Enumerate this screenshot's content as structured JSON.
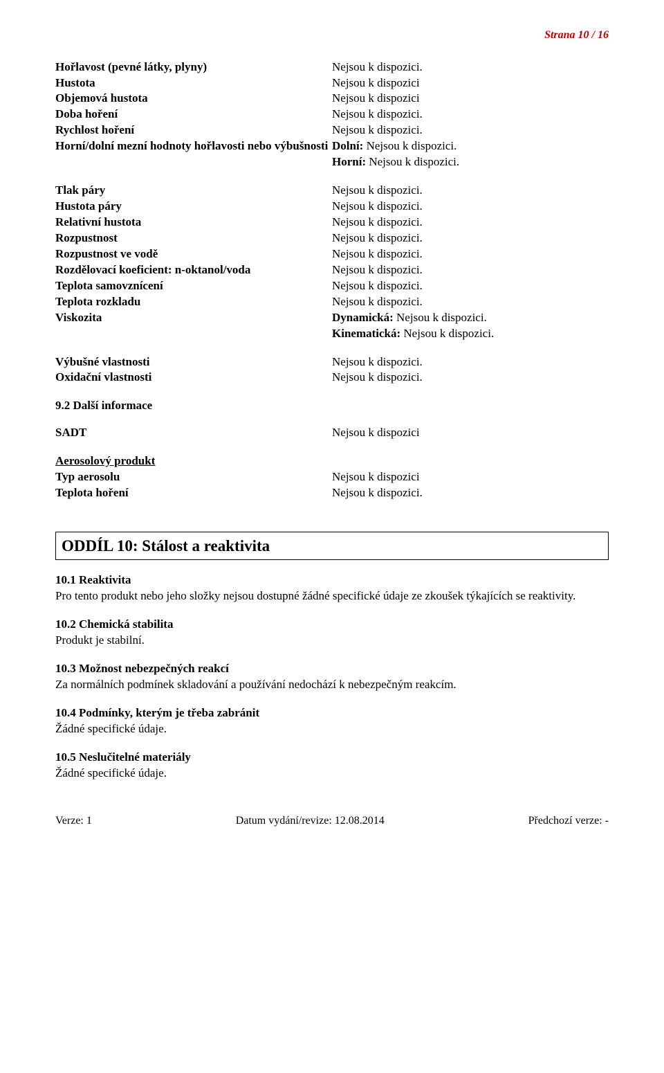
{
  "pageNumber": "Strana 10 / 16",
  "group1": [
    {
      "label": "Hořlavost (pevné látky, plyny)",
      "value": "Nejsou k dispozici."
    },
    {
      "label": "Hustota",
      "value": "Nejsou k dispozici"
    },
    {
      "label": "Objemová hustota",
      "value": "Nejsou k dispozici"
    },
    {
      "label": "Doba hoření",
      "value": "Nejsou k dispozici."
    },
    {
      "label": "Rychlost hoření",
      "value": "Nejsou k dispozici."
    },
    {
      "label": "Horní/dolní mezní hodnoty hořlavosti nebo výbušnosti",
      "value1_prefix": "Dolní: ",
      "value1_rest": "Nejsou k dispozici.",
      "value2_prefix": "Horní: ",
      "value2_rest": "Nejsou k dispozici."
    }
  ],
  "group2": [
    {
      "label": "Tlak páry",
      "value": "Nejsou k dispozici."
    },
    {
      "label": "Hustota páry",
      "value": "Nejsou k dispozici."
    },
    {
      "label": "Relativní hustota",
      "value": "Nejsou k dispozici."
    },
    {
      "label": "Rozpustnost",
      "value": "Nejsou k dispozici."
    },
    {
      "label": "Rozpustnost ve vodě",
      "value": "Nejsou k dispozici."
    },
    {
      "label": "Rozdělovací koeficient: n-oktanol/voda",
      "value": "Nejsou k dispozici."
    },
    {
      "label": "Teplota samovznícení",
      "value": "Nejsou k dispozici."
    },
    {
      "label": "Teplota rozkladu",
      "value": "Nejsou k dispozici."
    },
    {
      "label": "Viskozita",
      "value1_prefix": "Dynamická: ",
      "value1_rest": "Nejsou k dispozici.",
      "value2_prefix": "Kinematická: ",
      "value2_rest": "Nejsou k dispozici."
    }
  ],
  "group3": [
    {
      "label": "Výbušné vlastnosti",
      "value": "Nejsou k dispozici."
    },
    {
      "label": "Oxidační vlastnosti",
      "value": "Nejsou k dispozici."
    }
  ],
  "subheading92": "9.2 Další informace",
  "sadt": {
    "label": "SADT",
    "value": "Nejsou k dispozici"
  },
  "aerosolHeader": "Aerosolový produkt",
  "aerosol": [
    {
      "label": "Typ aerosolu",
      "value": "Nejsou k dispozici"
    },
    {
      "label": "Teplota hoření",
      "value": "Nejsou k dispozici."
    }
  ],
  "section10": {
    "title": "ODDÍL 10: Stálost a reaktivita",
    "p101_head": "10.1 Reaktivita",
    "p101_body": "Pro tento produkt nebo jeho složky nejsou dostupné žádné specifické údaje ze zkoušek týkajících se reaktivity.",
    "p102_head": "10.2 Chemická stabilita",
    "p102_body": "Produkt je stabilní.",
    "p103_head": "10.3 Možnost nebezpečných reakcí",
    "p103_body": "Za normálních podmínek skladování a používání nedochází k nebezpečným reakcím.",
    "p104_head": "10.4 Podmínky, kterým je třeba zabránit",
    "p104_body": "Žádné specifické údaje.",
    "p105_head": "10.5 Neslučitelné materiály",
    "p105_body": "Žádné specifické údaje."
  },
  "footer": {
    "left": "Verze: 1",
    "center": "Datum vydání/revize: 12.08.2014",
    "right": "Předchozí verze: -"
  }
}
